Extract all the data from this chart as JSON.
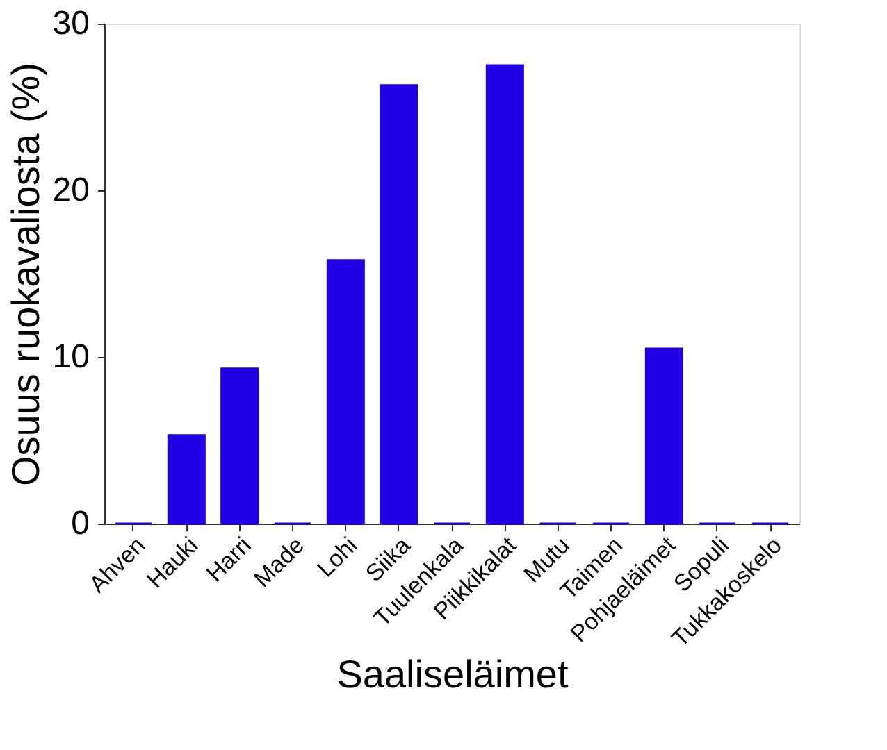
{
  "chart_data": {
    "type": "bar",
    "xlabel": "Saaliseläimet",
    "ylabel": "Osuus ruokavaliosta (%)",
    "categories": [
      "Ahven",
      "Hauki",
      "Harri",
      "Made",
      "Lohi",
      "Siika",
      "Tuulenkala",
      "Piikkikalat",
      "Mutu",
      "Taimen",
      "Pohjaeläimet",
      "Sopuli",
      "Tukkakoskelo"
    ],
    "values": [
      0,
      5.3,
      9.3,
      0,
      15.8,
      26.3,
      0,
      27.5,
      0,
      0,
      10.5,
      0,
      0
    ],
    "color": "#2200e6",
    "ylim": [
      0,
      30
    ],
    "yticks": [
      0,
      10,
      20,
      30
    ],
    "grid": false
  }
}
